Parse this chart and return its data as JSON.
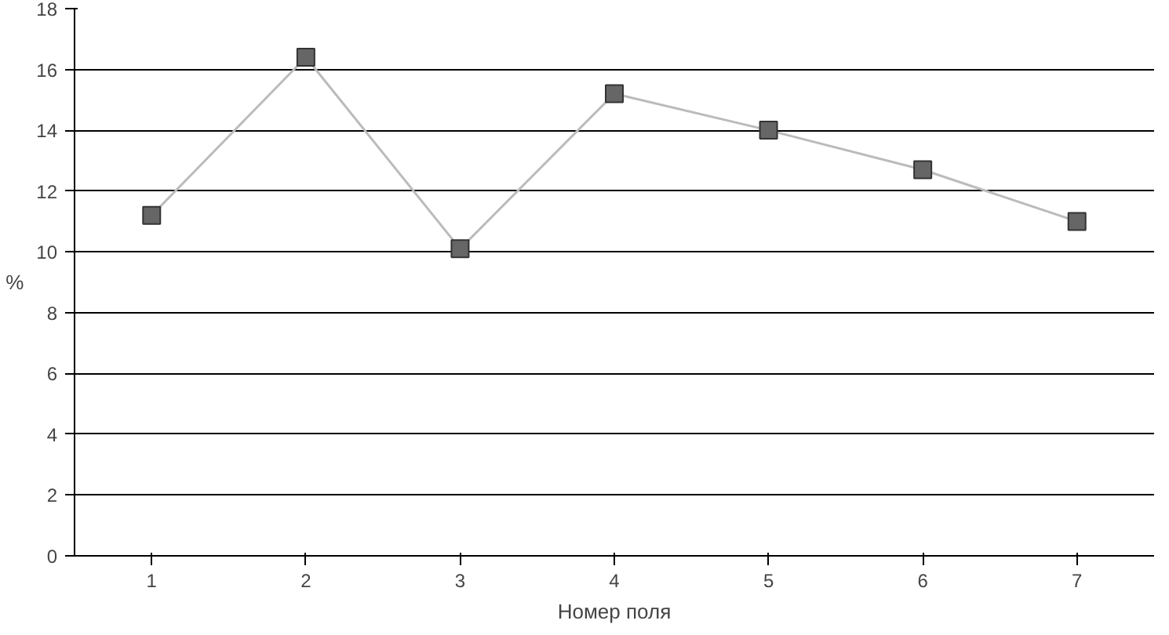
{
  "chart_data": {
    "type": "line",
    "xlabel": "Номер поля",
    "ylabel": "%",
    "categories": [
      "1",
      "2",
      "3",
      "4",
      "5",
      "6",
      "7"
    ],
    "series": [
      {
        "color": "#666666",
        "values": [
          11.2,
          16.4,
          10.1,
          15.2,
          14.0,
          12.7,
          11.0
        ]
      }
    ],
    "ylim": [
      0,
      18
    ],
    "yticks": [
      0,
      2,
      4,
      6,
      8,
      10,
      12,
      14,
      16,
      18
    ],
    "grid": "y",
    "marker": "square",
    "line_style": "solid"
  }
}
